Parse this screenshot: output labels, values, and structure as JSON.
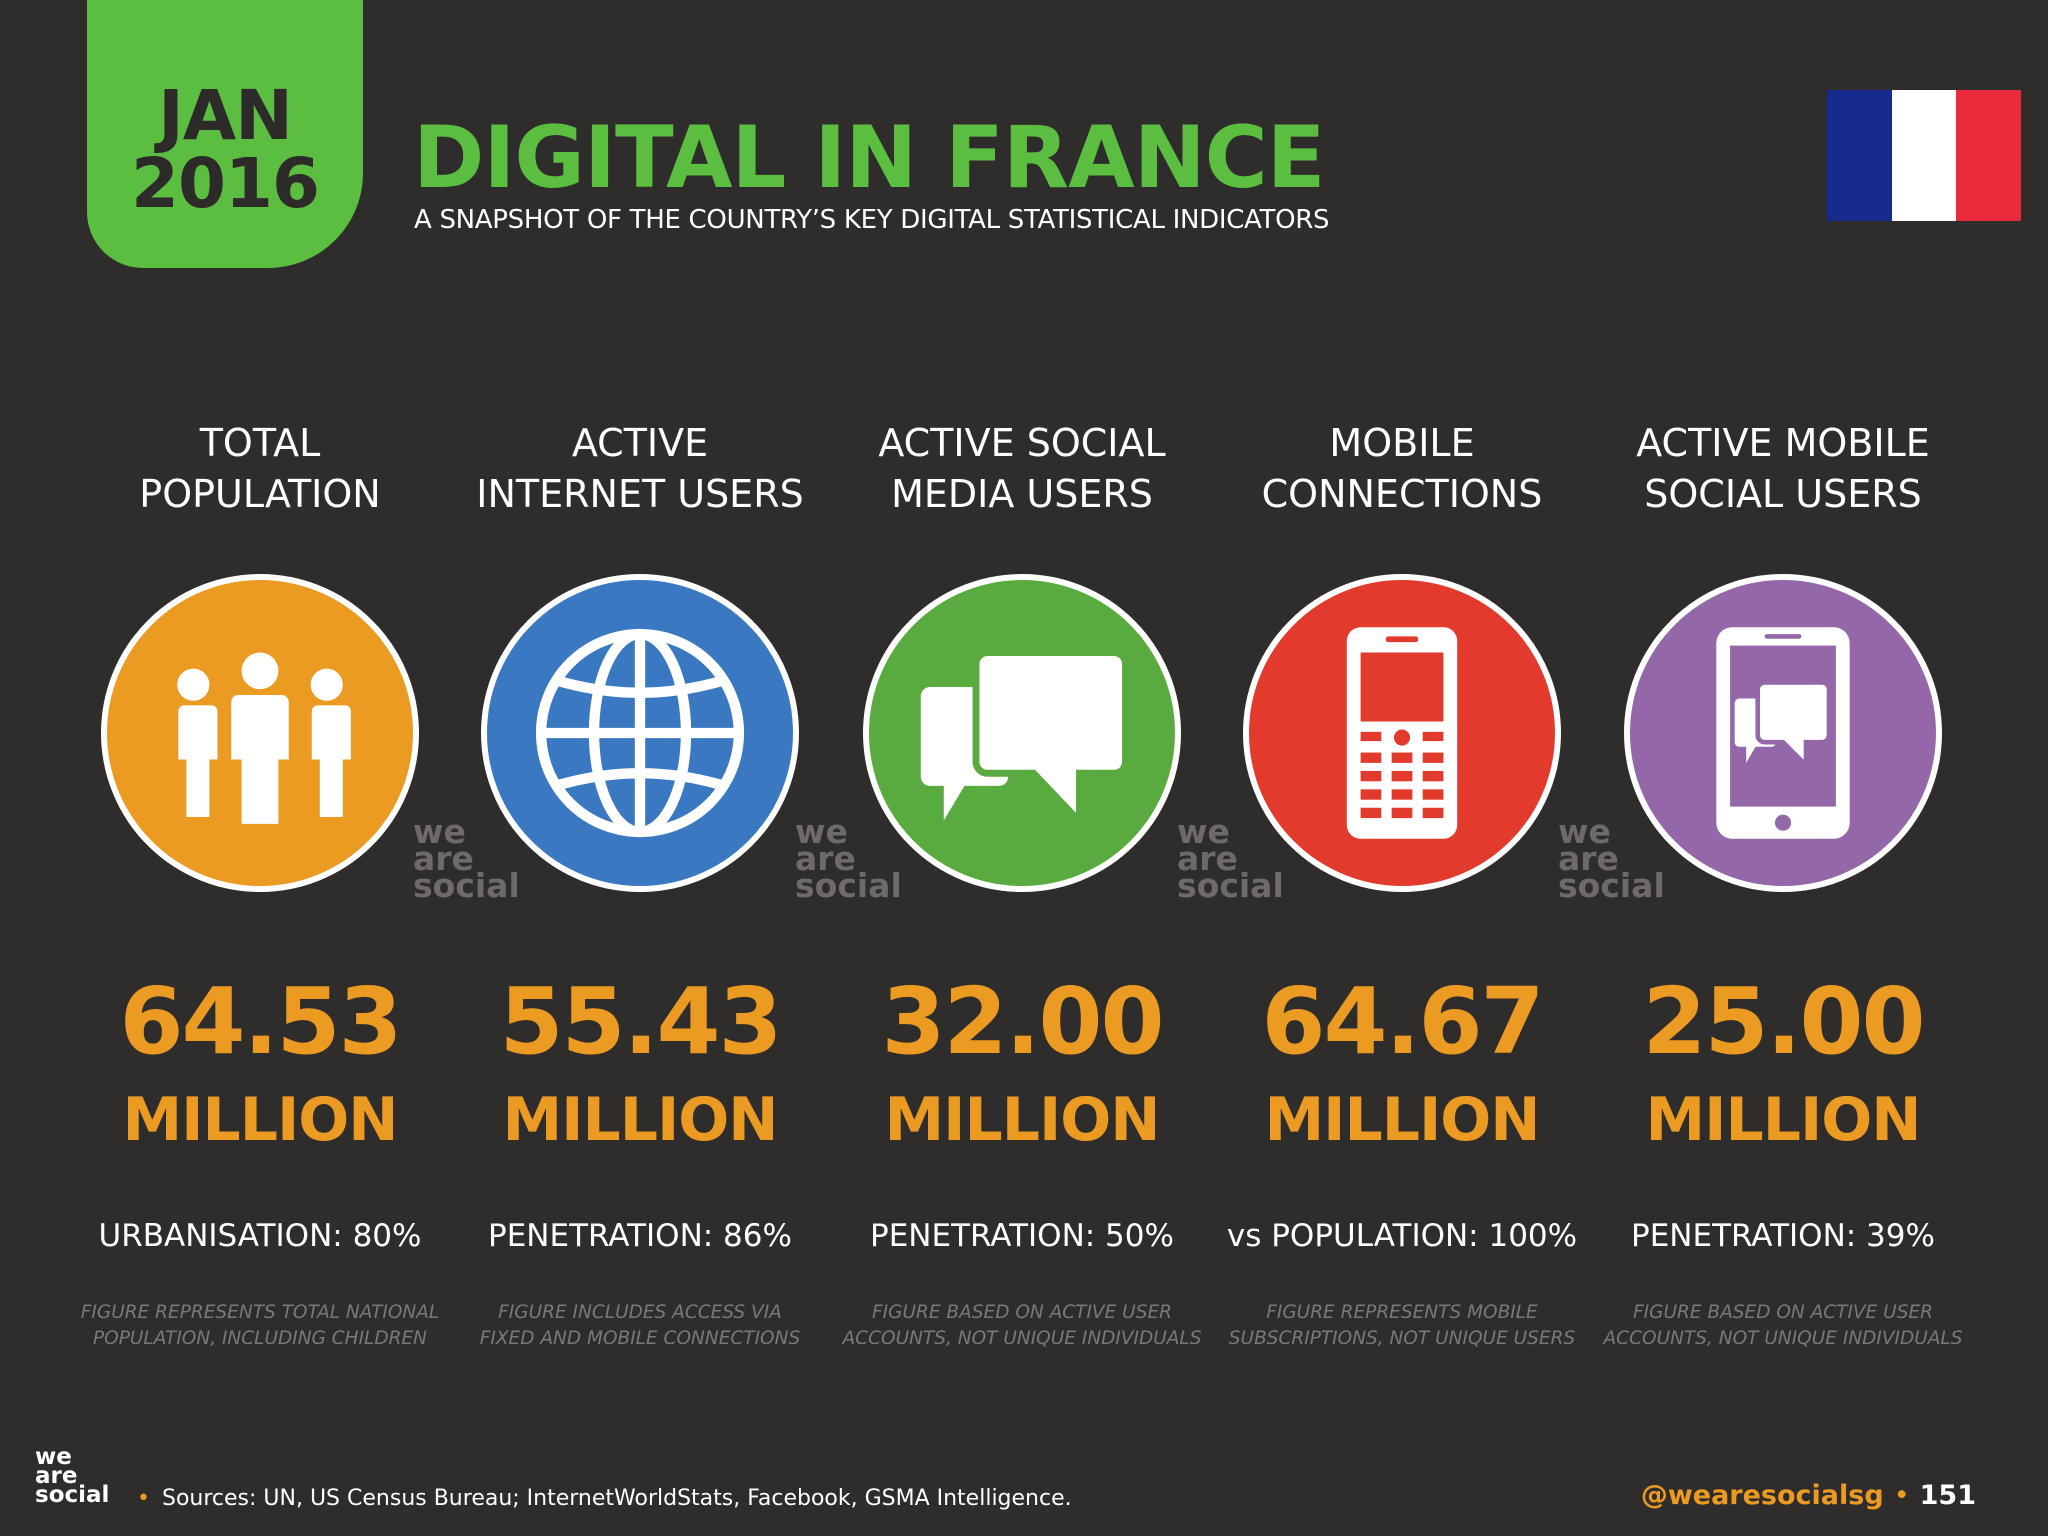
{
  "header": {
    "badge_month": "JAN",
    "badge_year": "2016",
    "title": "DIGITAL IN FRANCE",
    "subtitle": "A SNAPSHOT OF THE COUNTRY’S KEY DIGITAL STATISTICAL INDICATORS"
  },
  "flag": {
    "colors": [
      "#172a8e",
      "#ffffff",
      "#ea2a3b"
    ]
  },
  "stats": [
    {
      "title": "TOTAL\nPOPULATION",
      "icon": "people-icon",
      "color": "#eb9b22",
      "value": "64.53",
      "unit": "MILLION",
      "metric": "URBANISATION: 80%",
      "note": "FIGURE REPRESENTS TOTAL NATIONAL\nPOPULATION, INCLUDING CHILDREN"
    },
    {
      "title": "ACTIVE\nINTERNET USERS",
      "icon": "globe-icon",
      "color": "#3b78c2",
      "value": "55.43",
      "unit": "MILLION",
      "metric": "PENETRATION: 86%",
      "note": "FIGURE INCLUDES ACCESS VIA\nFIXED AND MOBILE CONNECTIONS"
    },
    {
      "title": "ACTIVE SOCIAL\nMEDIA USERS",
      "icon": "chat-bubbles-icon",
      "color": "#5aab3f",
      "value": "32.00",
      "unit": "MILLION",
      "metric": "PENETRATION: 50%",
      "note": "FIGURE BASED ON ACTIVE USER\nACCOUNTS, NOT UNIQUE INDIVIDUALS"
    },
    {
      "title": "MOBILE\nCONNECTIONS",
      "icon": "mobile-phone-icon",
      "color": "#e23b2e",
      "value": "64.67",
      "unit": "MILLION",
      "metric": "vs POPULATION: 100%",
      "note": "FIGURE REPRESENTS MOBILE\nSUBSCRIPTIONS, NOT UNIQUE USERS"
    },
    {
      "title": "ACTIVE MOBILE\nSOCIAL USERS",
      "icon": "smartphone-chat-icon",
      "color": "#9467a8",
      "value": "25.00",
      "unit": "MILLION",
      "metric": "PENETRATION: 39%",
      "note": "FIGURE BASED ON ACTIVE USER\nACCOUNTS, NOT UNIQUE INDIVIDUALS"
    }
  ],
  "watermark": {
    "line1": "we",
    "line2": "are",
    "line3": "social"
  },
  "footer": {
    "logo_line1": "we",
    "logo_line2": "are",
    "logo_line3": "social",
    "sources": "Sources: UN, US Census Bureau; InternetWorldStats, Facebook, GSMA Intelligence.",
    "handle": "@wearesocialsg",
    "page": "151"
  }
}
